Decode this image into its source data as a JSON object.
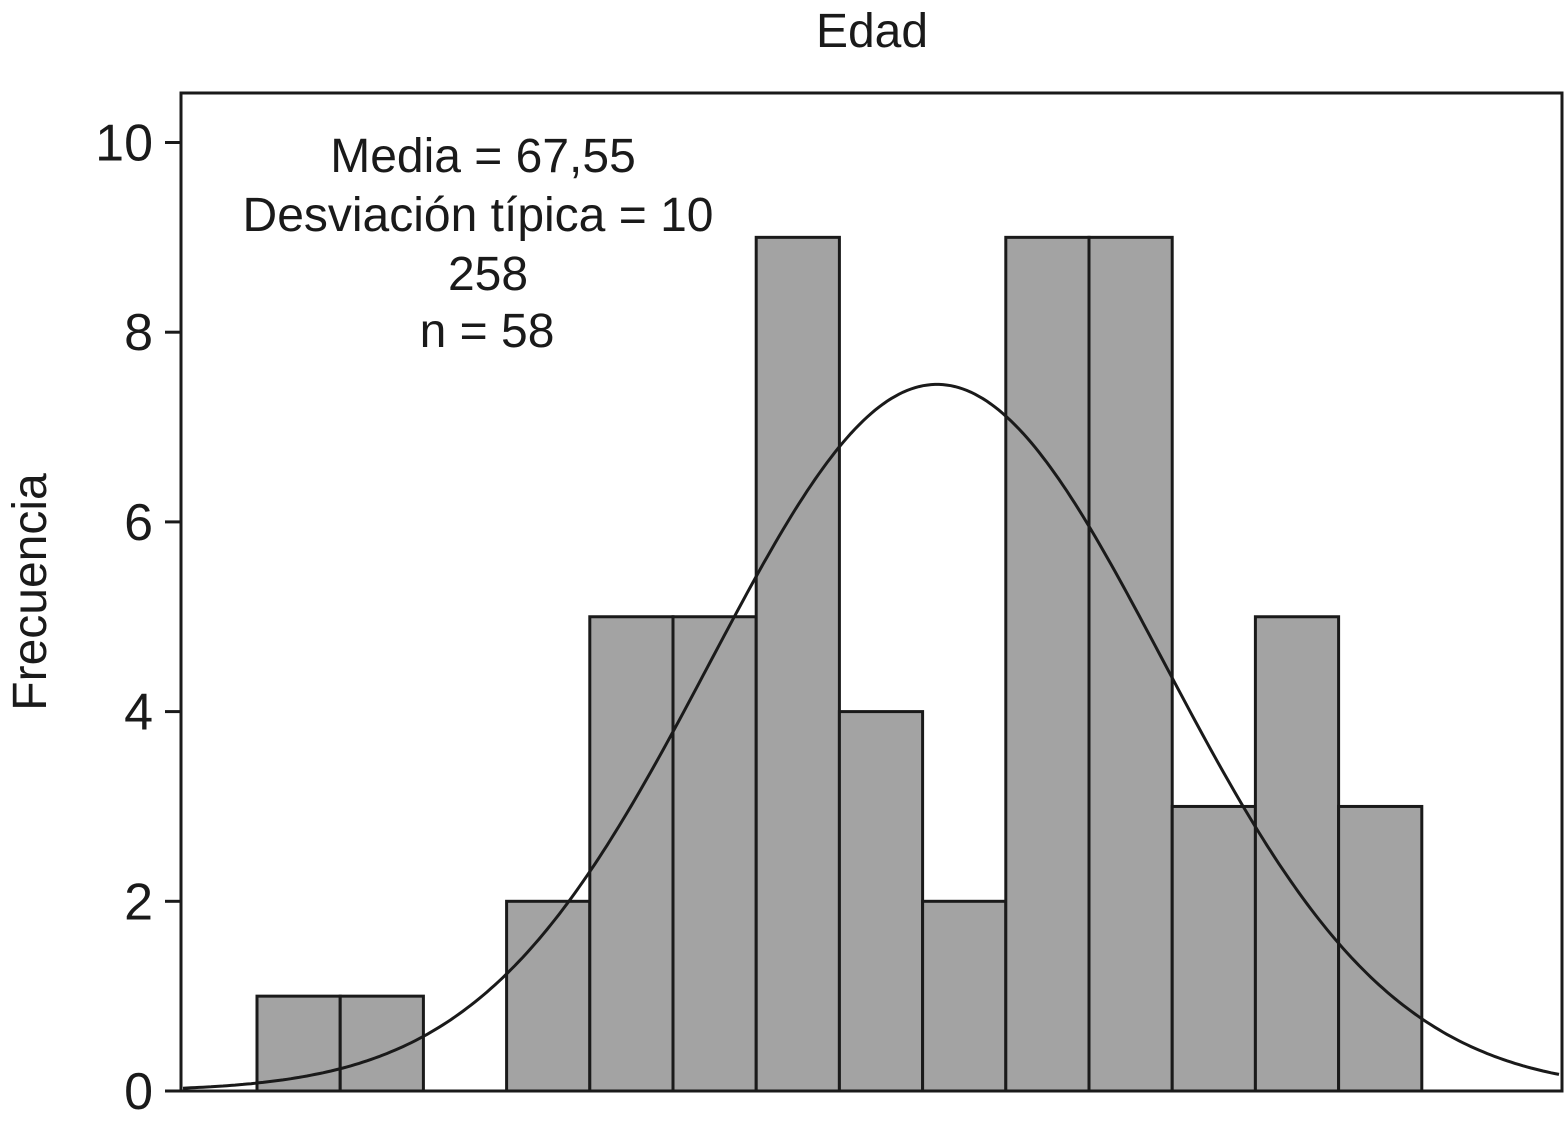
{
  "chart_data": {
    "type": "bar",
    "title": "Edad",
    "xlabel": "",
    "ylabel": "Frecuencia",
    "ylim": [
      0,
      10.5
    ],
    "yticks": [
      "0",
      "2",
      "4",
      "6",
      "8",
      "10"
    ],
    "bins": [
      {
        "index": 0,
        "value": 1
      },
      {
        "index": 1,
        "value": 1
      },
      {
        "index": 3,
        "value": 2
      },
      {
        "index": 4,
        "value": 5
      },
      {
        "index": 5,
        "value": 5
      },
      {
        "index": 6,
        "value": 9
      },
      {
        "index": 7,
        "value": 4
      },
      {
        "index": 8,
        "value": 2
      },
      {
        "index": 9,
        "value": 9
      },
      {
        "index": 10,
        "value": 9
      },
      {
        "index": 11,
        "value": 3
      },
      {
        "index": 12,
        "value": 5
      },
      {
        "index": 13,
        "value": 3
      }
    ],
    "normal_curve": {
      "peak": 7.45
    },
    "annotation": [
      "Media = 67,55",
      "Desviación típica = 10",
      "258",
      "n = 58"
    ],
    "grid": false,
    "bar_color": "#a3a3a3",
    "edge_color": "#1a1a1a"
  }
}
